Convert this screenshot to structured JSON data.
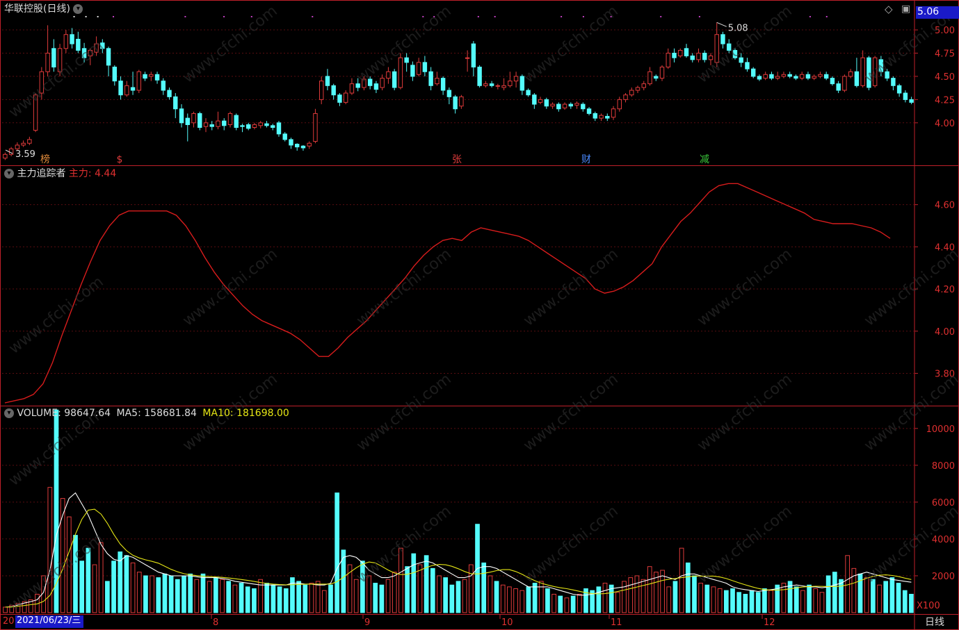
{
  "colors": {
    "up": "#e03b3b",
    "down": "#54fcfc",
    "frame": "#c0202a",
    "grid": "#5a0d10",
    "ma5": "#ffffff",
    "ma10": "#e6e615",
    "zl_line": "#d81c1c",
    "accent_blue": "#1a1ac8"
  },
  "main": {
    "title": "华联控股(日线)",
    "high_marker": "5.08",
    "low_marker": "3.59",
    "current_price_badge": "5.06",
    "yticks": [
      "5.00",
      "4.75",
      "4.50",
      "4.25",
      "4.00"
    ],
    "ylim": [
      3.55,
      5.12
    ],
    "events": [
      {
        "text": "榜",
        "color": "#e08a3a"
      },
      {
        "text": "$",
        "color": "#e03b3b"
      },
      {
        "text": "张",
        "color": "#e03b3b"
      },
      {
        "text": "财",
        "color": "#4a8aff"
      },
      {
        "text": "减",
        "color": "#3ac63a"
      }
    ],
    "candles": [
      [
        3.62,
        3.66,
        3.6,
        3.68
      ],
      [
        3.66,
        3.72,
        3.64,
        3.74
      ],
      [
        3.72,
        3.76,
        3.7,
        3.79
      ],
      [
        3.76,
        3.78,
        3.74,
        3.81
      ],
      [
        3.78,
        3.82,
        3.76,
        3.85
      ],
      [
        3.92,
        4.3,
        3.9,
        4.32
      ],
      [
        4.32,
        4.55,
        4.25,
        4.6
      ],
      [
        4.55,
        4.75,
        4.5,
        5.05
      ],
      [
        4.8,
        4.6,
        4.55,
        4.9
      ],
      [
        4.55,
        4.8,
        4.5,
        4.85
      ],
      [
        4.8,
        4.95,
        4.75,
        5.0
      ],
      [
        4.95,
        4.85,
        4.8,
        5.02
      ],
      [
        4.9,
        4.78,
        4.75,
        4.98
      ],
      [
        4.8,
        4.7,
        4.65,
        4.86
      ],
      [
        4.72,
        4.78,
        4.62,
        4.8
      ],
      [
        4.76,
        4.85,
        4.72,
        4.93
      ],
      [
        4.86,
        4.8,
        4.75,
        4.9
      ],
      [
        4.8,
        4.62,
        4.5,
        4.82
      ],
      [
        4.6,
        4.45,
        4.4,
        4.62
      ],
      [
        4.45,
        4.3,
        4.25,
        4.5
      ],
      [
        4.3,
        4.4,
        4.28,
        4.45
      ],
      [
        4.38,
        4.35,
        4.3,
        4.55
      ],
      [
        4.35,
        4.55,
        4.32,
        4.57
      ],
      [
        4.52,
        4.48,
        4.45,
        4.55
      ],
      [
        4.5,
        4.52,
        4.45,
        4.55
      ],
      [
        4.52,
        4.46,
        4.42,
        4.55
      ],
      [
        4.45,
        4.35,
        4.3,
        4.48
      ],
      [
        4.35,
        4.28,
        4.25,
        4.38
      ],
      [
        4.28,
        4.15,
        4.05,
        4.32
      ],
      [
        4.15,
        4.0,
        3.95,
        4.2
      ],
      [
        4.05,
        3.98,
        3.8,
        4.1
      ],
      [
        4.0,
        4.1,
        3.95,
        4.12
      ],
      [
        4.1,
        3.95,
        3.92,
        4.12
      ],
      [
        3.96,
        4.0,
        3.9,
        4.05
      ],
      [
        3.98,
        3.96,
        3.92,
        4.02
      ],
      [
        3.96,
        4.02,
        3.93,
        4.12
      ],
      [
        4.02,
        3.97,
        3.92,
        4.05
      ],
      [
        3.98,
        4.1,
        3.95,
        4.12
      ],
      [
        4.08,
        3.95,
        3.92,
        4.1
      ],
      [
        3.97,
        3.96,
        3.9,
        3.99
      ],
      [
        3.98,
        3.94,
        3.92,
        4.0
      ],
      [
        3.95,
        3.98,
        3.93,
        4.0
      ],
      [
        3.97,
        4.0,
        3.94,
        4.02
      ],
      [
        3.99,
        3.97,
        3.95,
        4.02
      ],
      [
        3.97,
        3.95,
        3.92,
        3.99
      ],
      [
        4.0,
        3.88,
        3.85,
        4.02
      ],
      [
        3.88,
        3.82,
        3.8,
        3.9
      ],
      [
        3.82,
        3.76,
        3.72,
        3.84
      ],
      [
        3.77,
        3.74,
        3.7,
        3.78
      ],
      [
        3.75,
        3.73,
        3.7,
        3.76
      ],
      [
        3.75,
        3.78,
        3.72,
        3.8
      ],
      [
        3.8,
        4.1,
        3.78,
        4.15
      ],
      [
        4.25,
        4.45,
        4.2,
        4.5
      ],
      [
        4.5,
        4.4,
        4.35,
        4.58
      ],
      [
        4.4,
        4.3,
        4.25,
        4.42
      ],
      [
        4.3,
        4.22,
        4.18,
        4.32
      ],
      [
        4.22,
        4.32,
        4.2,
        4.35
      ],
      [
        4.32,
        4.42,
        4.3,
        4.48
      ],
      [
        4.42,
        4.38,
        4.34,
        4.48
      ],
      [
        4.38,
        4.47,
        4.35,
        4.5
      ],
      [
        4.47,
        4.4,
        4.36,
        4.5
      ],
      [
        4.42,
        4.36,
        4.32,
        4.45
      ],
      [
        4.38,
        4.48,
        4.35,
        4.52
      ],
      [
        4.48,
        4.55,
        4.42,
        4.6
      ],
      [
        4.55,
        4.38,
        4.35,
        4.58
      ],
      [
        4.38,
        4.7,
        4.36,
        4.75
      ],
      [
        4.7,
        4.65,
        4.55,
        4.75
      ],
      [
        4.62,
        4.5,
        4.45,
        4.66
      ],
      [
        4.52,
        4.65,
        4.5,
        4.7
      ],
      [
        4.65,
        4.55,
        4.5,
        4.72
      ],
      [
        4.55,
        4.4,
        4.35,
        4.6
      ],
      [
        4.42,
        4.48,
        4.4,
        4.55
      ],
      [
        4.48,
        4.35,
        4.3,
        4.5
      ],
      [
        4.35,
        4.28,
        4.2,
        4.38
      ],
      [
        4.28,
        4.15,
        4.1,
        4.3
      ],
      [
        4.18,
        4.28,
        4.15,
        4.3
      ],
      [
        4.7,
        4.7,
        4.55,
        4.78
      ],
      [
        4.85,
        4.6,
        4.5,
        4.88
      ],
      [
        4.6,
        4.4,
        4.38,
        4.62
      ],
      [
        4.4,
        4.42,
        4.38,
        4.45
      ],
      [
        4.42,
        4.4,
        4.38,
        4.45
      ],
      [
        4.4,
        4.4,
        4.36,
        4.42
      ],
      [
        4.38,
        4.4,
        4.35,
        4.48
      ],
      [
        4.4,
        4.45,
        4.38,
        4.55
      ],
      [
        4.45,
        4.5,
        4.38,
        4.55
      ],
      [
        4.5,
        4.35,
        4.3,
        4.52
      ],
      [
        4.35,
        4.3,
        4.28,
        4.37
      ],
      [
        4.3,
        4.2,
        4.15,
        4.32
      ],
      [
        4.22,
        4.25,
        4.2,
        4.28
      ],
      [
        4.25,
        4.18,
        4.15,
        4.27
      ],
      [
        4.18,
        4.2,
        4.15,
        4.22
      ],
      [
        4.2,
        4.15,
        4.12,
        4.22
      ],
      [
        4.16,
        4.2,
        4.14,
        4.22
      ],
      [
        4.2,
        4.18,
        4.15,
        4.22
      ],
      [
        4.19,
        4.21,
        4.15,
        4.23
      ],
      [
        4.2,
        4.15,
        4.12,
        4.22
      ],
      [
        4.15,
        4.1,
        4.08,
        4.17
      ],
      [
        4.1,
        4.05,
        4.02,
        4.12
      ],
      [
        4.05,
        4.08,
        4.02,
        4.1
      ],
      [
        4.07,
        4.05,
        4.02,
        4.1
      ],
      [
        4.06,
        4.15,
        4.03,
        4.18
      ],
      [
        4.15,
        4.25,
        4.12,
        4.28
      ],
      [
        4.25,
        4.3,
        4.22,
        4.32
      ],
      [
        4.3,
        4.35,
        4.28,
        4.38
      ],
      [
        4.35,
        4.38,
        4.32,
        4.4
      ],
      [
        4.38,
        4.42,
        4.35,
        4.45
      ],
      [
        4.42,
        4.55,
        4.4,
        4.6
      ],
      [
        4.5,
        4.48,
        4.45,
        4.52
      ],
      [
        4.48,
        4.6,
        4.45,
        4.62
      ],
      [
        4.6,
        4.75,
        4.58,
        4.8
      ],
      [
        4.75,
        4.7,
        4.65,
        4.8
      ],
      [
        4.72,
        4.78,
        4.7,
        4.8
      ],
      [
        4.8,
        4.72,
        4.7,
        4.85
      ],
      [
        4.72,
        4.68,
        4.65,
        4.75
      ],
      [
        4.68,
        4.75,
        4.65,
        4.8
      ],
      [
        4.75,
        4.68,
        4.65,
        4.78
      ],
      [
        4.68,
        4.72,
        4.62,
        4.75
      ],
      [
        4.65,
        4.95,
        4.6,
        5.08
      ],
      [
        4.95,
        4.85,
        4.8,
        4.98
      ],
      [
        4.85,
        4.78,
        4.75,
        4.9
      ],
      [
        4.78,
        4.7,
        4.68,
        4.8
      ],
      [
        4.7,
        4.65,
        4.6,
        4.75
      ],
      [
        4.65,
        4.58,
        4.55,
        4.7
      ],
      [
        4.58,
        4.5,
        4.48,
        4.6
      ],
      [
        4.5,
        4.47,
        4.45,
        4.52
      ],
      [
        4.48,
        4.52,
        4.46,
        4.55
      ],
      [
        4.52,
        4.48,
        4.46,
        4.55
      ],
      [
        4.48,
        4.5,
        4.46,
        4.55
      ],
      [
        4.5,
        4.52,
        4.48,
        4.55
      ],
      [
        4.52,
        4.5,
        4.48,
        4.55
      ],
      [
        4.5,
        4.48,
        4.46,
        4.52
      ],
      [
        4.48,
        4.52,
        4.46,
        4.55
      ],
      [
        4.52,
        4.48,
        4.46,
        4.55
      ],
      [
        4.48,
        4.5,
        4.46,
        4.52
      ],
      [
        4.5,
        4.52,
        4.48,
        4.55
      ],
      [
        4.52,
        4.48,
        4.46,
        4.55
      ],
      [
        4.48,
        4.42,
        4.4,
        4.5
      ],
      [
        4.42,
        4.35,
        4.32,
        4.45
      ],
      [
        4.35,
        4.5,
        4.33,
        4.52
      ],
      [
        4.5,
        4.55,
        4.48,
        4.58
      ],
      [
        4.55,
        4.4,
        4.38,
        4.7
      ],
      [
        4.4,
        4.7,
        4.38,
        4.78
      ],
      [
        4.7,
        4.38,
        4.35,
        4.72
      ],
      [
        4.4,
        4.7,
        4.38,
        4.72
      ],
      [
        4.68,
        4.55,
        4.5,
        4.72
      ],
      [
        4.55,
        4.48,
        4.45,
        4.58
      ],
      [
        4.48,
        4.4,
        4.35,
        4.5
      ],
      [
        4.4,
        4.32,
        4.28,
        4.42
      ],
      [
        4.32,
        4.25,
        4.22,
        4.35
      ],
      [
        4.25,
        4.22,
        4.2,
        4.28
      ]
    ]
  },
  "indicator": {
    "name": "主力追踪者",
    "series_label": "主力:",
    "value": "4.44",
    "yticks": [
      "4.60",
      "4.40",
      "4.20",
      "4.00",
      "3.80"
    ],
    "ylim": [
      3.65,
      4.78
    ],
    "line": [
      3.66,
      3.67,
      3.68,
      3.7,
      3.75,
      3.85,
      3.98,
      4.1,
      4.22,
      4.33,
      4.43,
      4.5,
      4.55,
      4.57,
      4.57,
      4.57,
      4.57,
      4.57,
      4.55,
      4.5,
      4.43,
      4.35,
      4.28,
      4.22,
      4.17,
      4.12,
      4.08,
      4.05,
      4.03,
      4.01,
      3.99,
      3.96,
      3.92,
      3.88,
      3.88,
      3.92,
      3.97,
      4.01,
      4.05,
      4.1,
      4.15,
      4.2,
      4.25,
      4.31,
      4.36,
      4.4,
      4.43,
      4.44,
      4.43,
      4.47,
      4.49,
      4.48,
      4.47,
      4.46,
      4.45,
      4.43,
      4.4,
      4.37,
      4.34,
      4.31,
      4.28,
      4.25,
      4.2,
      4.18,
      4.19,
      4.21,
      4.24,
      4.28,
      4.32,
      4.4,
      4.46,
      4.52,
      4.56,
      4.61,
      4.66,
      4.69,
      4.7,
      4.7,
      4.68,
      4.66,
      4.64,
      4.62,
      4.6,
      4.58,
      4.56,
      4.53,
      4.52,
      4.51,
      4.51,
      4.51,
      4.5,
      4.49,
      4.47,
      4.44
    ]
  },
  "volume": {
    "label": "VOLUME:",
    "value": "98647.64",
    "ma5_label": "MA5:",
    "ma5_value": "158681.84",
    "ma10_label": "MA10:",
    "ma10_value": "181698.00",
    "multiplier": "X100",
    "yticks": [
      "10000",
      "8000",
      "6000",
      "4000",
      "2000"
    ],
    "ylim": [
      0,
      11200
    ],
    "bars": [
      300,
      400,
      500,
      600,
      700,
      1000,
      2000,
      6800,
      11000,
      6200,
      5200,
      4200,
      2800,
      3500,
      2600,
      3800,
      1700,
      2800,
      3300,
      3100,
      2700,
      2200,
      2000,
      2000,
      1900,
      2100,
      2000,
      1800,
      2000,
      2100,
      1800,
      2100,
      1700,
      1900,
      1800,
      1700,
      1500,
      1600,
      1400,
      1300,
      1800,
      1600,
      1500,
      1400,
      1300,
      1900,
      1700,
      1500,
      1600,
      1700,
      1200,
      1500,
      6500,
      3400,
      2600,
      1800,
      2800,
      2000,
      1600,
      1500,
      1800,
      2200,
      3500,
      2500,
      3200,
      2600,
      3100,
      2400,
      2000,
      1900,
      1500,
      1700,
      1800,
      2600,
      4800,
      2700,
      2000,
      1700,
      1500,
      1400,
      1300,
      1200,
      1400,
      1600,
      1700,
      1300,
      1000,
      900,
      800,
      900,
      1000,
      1300,
      1200,
      1400,
      1600,
      1500,
      1100,
      1700,
      1900,
      2000,
      1800,
      2500,
      2200,
      2300,
      1400,
      1700,
      3500,
      2700,
      2000,
      1600,
      1500,
      1400,
      1300,
      1200,
      1300,
      1100,
      1000,
      1200,
      1100,
      1300,
      1200,
      1500,
      1600,
      1700,
      1400,
      1200,
      1500,
      1300,
      1100,
      2000,
      2200,
      1800,
      3100,
      2400,
      2100,
      1900,
      1800,
      1500,
      1700,
      1900,
      1600,
      1200,
      1000
    ],
    "ma5": [
      300,
      320,
      420,
      520,
      600,
      700,
      1100,
      2300,
      4200,
      5300,
      6200,
      6500,
      5900,
      5300,
      4500,
      3700,
      3200,
      2900,
      2800,
      3100,
      3000,
      2800,
      2600,
      2400,
      2200,
      2100,
      2000,
      2000,
      2000,
      2000,
      1950,
      1900,
      1900,
      1900,
      1850,
      1800,
      1700,
      1650,
      1600,
      1550,
      1500,
      1500,
      1500,
      1500,
      1500,
      1600,
      1600,
      1550,
      1550,
      1500,
      1500,
      1600,
      2400,
      3000,
      3100,
      3000,
      2700,
      2300,
      2100,
      1900,
      1900,
      2000,
      2200,
      2400,
      2600,
      2700,
      2800,
      2700,
      2500,
      2300,
      2100,
      1900,
      1900,
      2000,
      2400,
      2500,
      2500,
      2400,
      2200,
      2000,
      1800,
      1600,
      1400,
      1400,
      1400,
      1400,
      1300,
      1200,
      1100,
      1000,
      950,
      950,
      1000,
      1100,
      1200,
      1300,
      1350,
      1400,
      1500,
      1600,
      1700,
      1800,
      1900,
      2000,
      1900,
      1800,
      2000,
      2100,
      2100,
      2000,
      1900,
      1800,
      1700,
      1600,
      1400,
      1300,
      1250,
      1200,
      1150,
      1200,
      1250,
      1300,
      1400,
      1450,
      1500,
      1450,
      1400,
      1400,
      1350,
      1400,
      1500,
      1600,
      1800,
      2000,
      2100,
      2200,
      2100,
      2000,
      1900,
      1800,
      1750,
      1700,
      1650
    ]
  },
  "time_axis": {
    "prefix": "20",
    "selected_date": "2021/06/23/三",
    "months": [
      "8",
      "9",
      "10",
      "11",
      "12"
    ],
    "period": "日线"
  },
  "watermark": "www.cfchi.com"
}
